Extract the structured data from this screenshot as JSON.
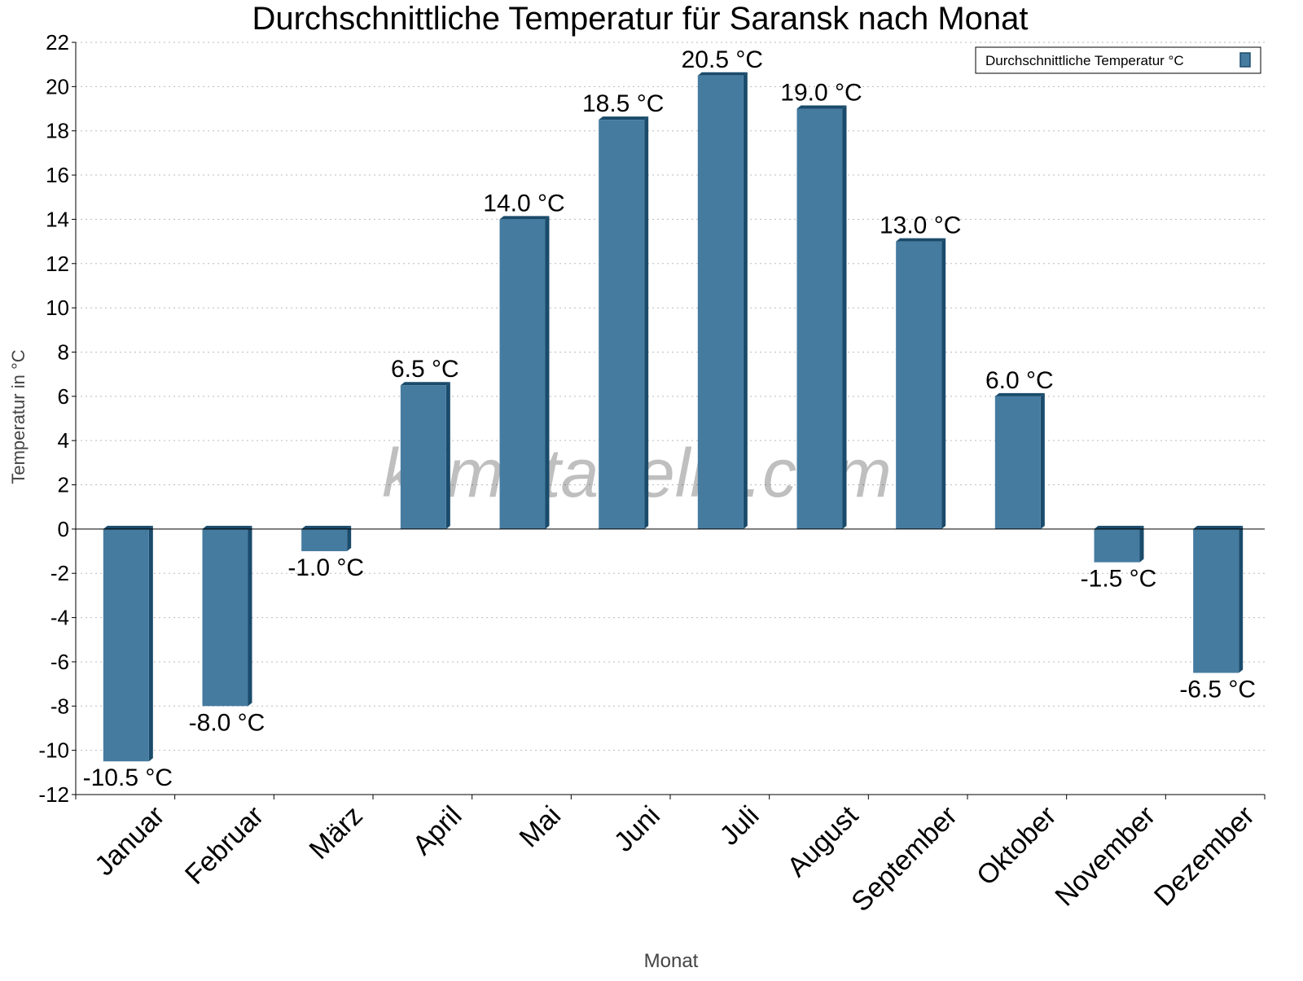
{
  "chart_data": {
    "type": "bar",
    "title": "Durchschnittliche Temperatur für Saransk nach Monat",
    "xlabel": "Monat",
    "ylabel": "Temperatur in °C",
    "categories": [
      "Januar",
      "Februar",
      "März",
      "April",
      "Mai",
      "Juni",
      "Juli",
      "August",
      "September",
      "Oktober",
      "November",
      "Dezember"
    ],
    "series": [
      {
        "name": "Durchschnittliche Temperatur °C",
        "values": [
          -10.5,
          -8.0,
          -1.0,
          6.5,
          14.0,
          18.5,
          20.5,
          19.0,
          13.0,
          6.0,
          -1.5,
          -6.5
        ],
        "labels": [
          "-10.5 °C",
          "-8.0 °C",
          "-1.0 °C",
          "6.5 °C",
          "14.0 °C",
          "18.5 °C",
          "20.5 °C",
          "19.0 °C",
          "13.0 °C",
          "6.0 °C",
          "-1.5 °C",
          "-6.5 °C"
        ]
      }
    ],
    "ylim": [
      -12,
      22
    ],
    "yticks": [
      -12,
      -10,
      -8,
      -6,
      -4,
      -2,
      0,
      2,
      4,
      6,
      8,
      10,
      12,
      14,
      16,
      18,
      20,
      22
    ],
    "grid": true,
    "legend_position": "top-right",
    "colors": {
      "bar_front": "#467ba0",
      "bar_side": "#1a4b6b"
    },
    "watermark": "klimatabelle.com"
  }
}
